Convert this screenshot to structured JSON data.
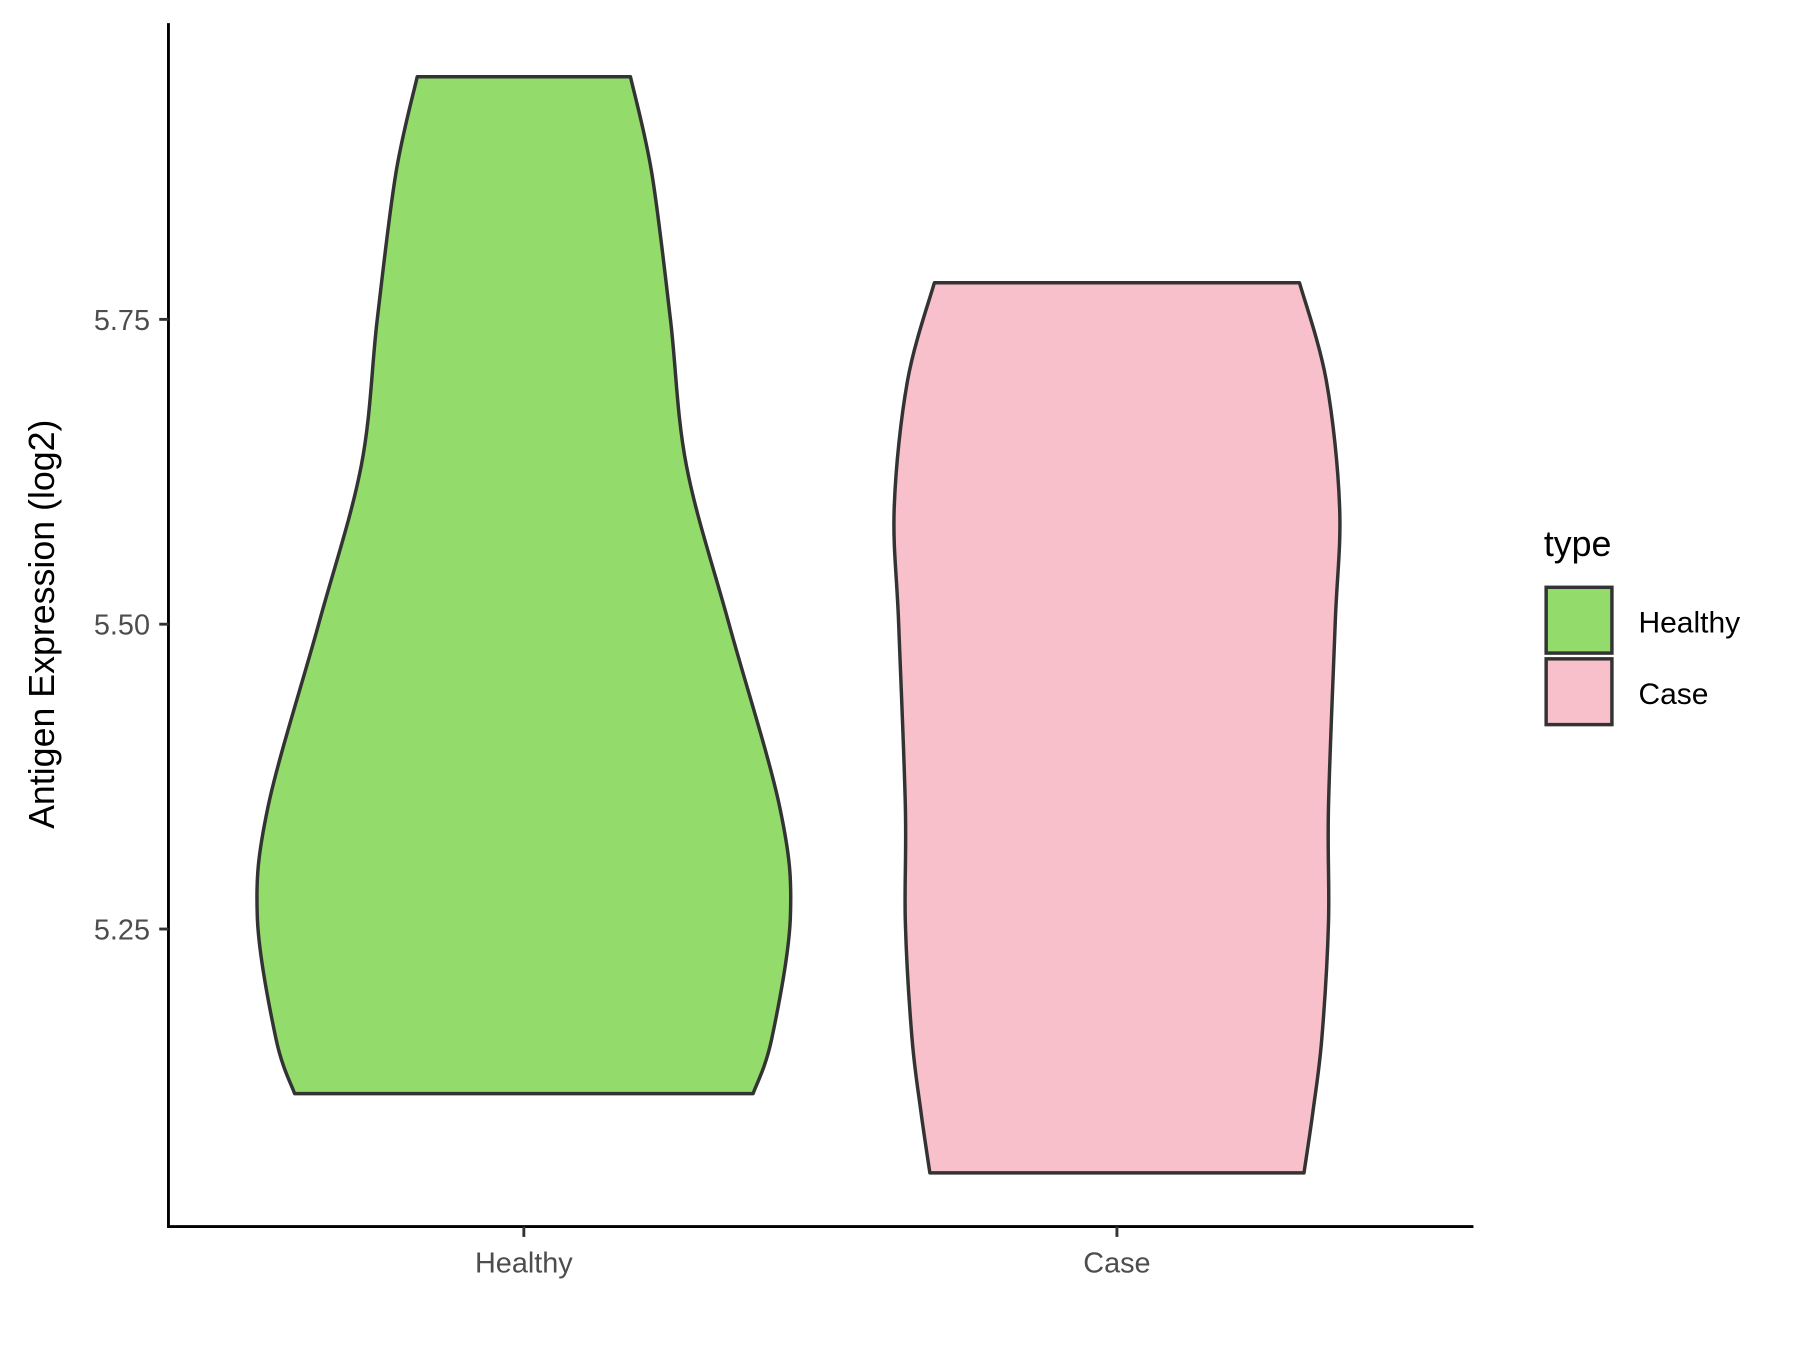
{
  "chart_data": {
    "type": "violin",
    "title": "",
    "xlabel": "",
    "ylabel": "Antigen Expression (log2)",
    "ylim": [
      5.006,
      5.993
    ],
    "yticks": [
      5.25,
      5.5,
      5.75
    ],
    "ytick_labels": [
      "5.25",
      "5.50",
      "5.75"
    ],
    "categories": [
      "Healthy",
      "Case"
    ],
    "grid": false,
    "legend": {
      "title": "type",
      "placement": "right",
      "entries": [
        "Healthy",
        "Case"
      ]
    },
    "series": [
      {
        "name": "Healthy",
        "color": "#93DC6B",
        "min": 5.115,
        "max": 5.949,
        "density_profile": {
          "y": [
            5.949,
            5.87,
            5.75,
            5.63,
            5.5,
            5.35,
            5.26,
            5.16,
            5.115
          ],
          "relative_width": [
            0.4,
            0.48,
            0.55,
            0.61,
            0.77,
            0.96,
            1.0,
            0.93,
            0.86
          ]
        }
      },
      {
        "name": "Case",
        "color": "#F8C0CB",
        "min": 5.05,
        "max": 5.78,
        "density_profile": {
          "y": [
            5.78,
            5.7,
            5.596,
            5.5,
            5.35,
            5.255,
            5.16,
            5.1,
            5.05
          ],
          "relative_width": [
            0.82,
            0.94,
            1.0,
            0.98,
            0.95,
            0.95,
            0.92,
            0.88,
            0.84
          ]
        }
      }
    ],
    "outline_color": "#333333"
  }
}
